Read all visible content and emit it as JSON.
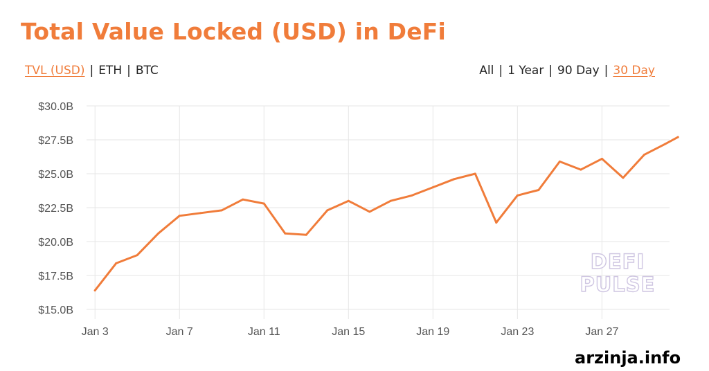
{
  "header": {
    "title": "Total Value Locked (USD) in DeFi"
  },
  "metric_tabs": [
    {
      "label": "TVL (USD)",
      "active": true
    },
    {
      "label": "ETH",
      "active": false
    },
    {
      "label": "BTC",
      "active": false
    }
  ],
  "range_tabs": [
    {
      "label": "All",
      "active": false
    },
    {
      "label": "1 Year",
      "active": false
    },
    {
      "label": "90 Day",
      "active": false
    },
    {
      "label": "30 Day",
      "active": true
    }
  ],
  "colors": {
    "accent": "#f07c3a",
    "grid": "#e6e6e6",
    "axis_text": "#555555"
  },
  "watermark": {
    "line1": "DEFI",
    "line2": "PULSE"
  },
  "site_label": "arzinja.info",
  "chart_data": {
    "type": "line",
    "title": "Total Value Locked (USD) in DeFi",
    "xlabel": "",
    "ylabel": "",
    "grid": true,
    "y_ticks": [
      "$15.0B",
      "$17.5B",
      "$20.0B",
      "$22.5B",
      "$25.0B",
      "$27.5B",
      "$30.0B"
    ],
    "ylim": [
      15.0,
      30.0
    ],
    "x_ticks": [
      "Jan 3",
      "Jan 7",
      "Jan 11",
      "Jan 15",
      "Jan 19",
      "Jan 23",
      "Jan 27"
    ],
    "x_tick_days": [
      3,
      7,
      11,
      15,
      19,
      23,
      27
    ],
    "xlim": [
      2.6,
      30.2
    ],
    "series": [
      {
        "x": [
          3,
          4,
          5,
          6,
          7,
          8,
          9,
          10,
          11,
          12,
          13,
          14,
          15,
          16,
          17,
          18,
          19,
          20,
          21,
          22,
          23,
          24,
          25,
          26,
          27,
          28,
          29,
          30,
          30.6
        ],
        "y": [
          16.4,
          18.4,
          19.0,
          20.6,
          21.9,
          22.1,
          22.3,
          23.1,
          22.8,
          20.6,
          20.5,
          22.3,
          23.0,
          22.2,
          23.0,
          23.4,
          24.0,
          24.6,
          25.0,
          21.4,
          23.4,
          23.8,
          25.9,
          25.3,
          26.1,
          24.7,
          26.4,
          27.2,
          27.7
        ]
      }
    ]
  }
}
